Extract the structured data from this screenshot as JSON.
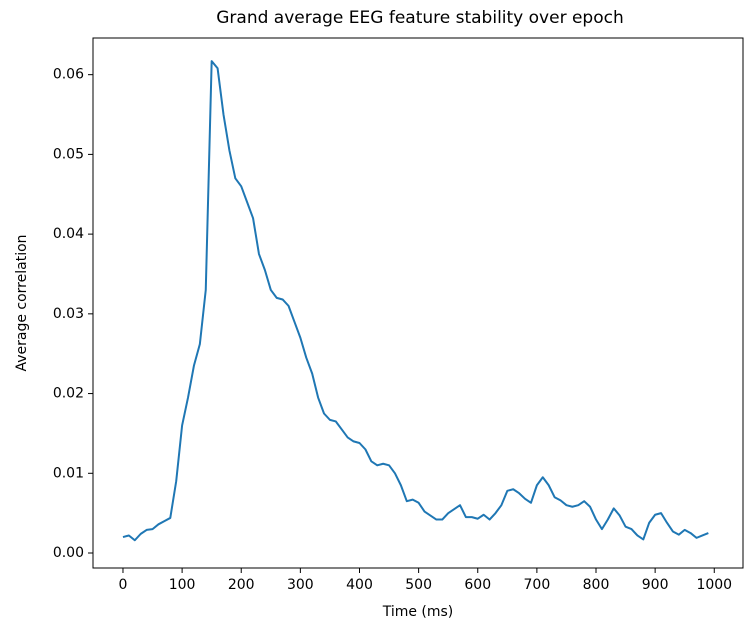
{
  "chart_data": {
    "type": "line",
    "title": "Grand average EEG feature stability over epoch",
    "xlabel": "Time (ms)",
    "ylabel": "Average correlation",
    "x": [
      0,
      10,
      20,
      30,
      40,
      50,
      60,
      70,
      80,
      90,
      100,
      110,
      120,
      130,
      140,
      150,
      160,
      170,
      180,
      190,
      200,
      210,
      220,
      230,
      240,
      250,
      260,
      270,
      280,
      290,
      300,
      310,
      320,
      330,
      340,
      350,
      360,
      370,
      380,
      390,
      400,
      410,
      420,
      430,
      440,
      450,
      460,
      470,
      480,
      490,
      500,
      510,
      520,
      530,
      540,
      550,
      560,
      570,
      580,
      590,
      600,
      610,
      620,
      630,
      640,
      650,
      660,
      670,
      680,
      690,
      700,
      710,
      720,
      730,
      740,
      750,
      760,
      770,
      780,
      790,
      800,
      810,
      820,
      830,
      840,
      850,
      860,
      870,
      880,
      890,
      900,
      910,
      920,
      930,
      940,
      950,
      960,
      970,
      980,
      990
    ],
    "series": [
      {
        "name": "Average correlation",
        "color": "#1f77b4",
        "values": [
          0.002,
          0.0022,
          0.0016,
          0.0024,
          0.0029,
          0.003,
          0.0036,
          0.004,
          0.0044,
          0.009,
          0.016,
          0.0195,
          0.0235,
          0.0262,
          0.033,
          0.0617,
          0.0608,
          0.055,
          0.0505,
          0.047,
          0.046,
          0.044,
          0.042,
          0.0375,
          0.0355,
          0.033,
          0.032,
          0.0318,
          0.031,
          0.029,
          0.027,
          0.0245,
          0.0225,
          0.0195,
          0.0175,
          0.0167,
          0.0165,
          0.0155,
          0.0145,
          0.014,
          0.0138,
          0.013,
          0.0115,
          0.011,
          0.0112,
          0.011,
          0.01,
          0.0085,
          0.0065,
          0.0067,
          0.0063,
          0.0052,
          0.0047,
          0.0042,
          0.0042,
          0.005,
          0.0055,
          0.006,
          0.0045,
          0.0045,
          0.0043,
          0.0048,
          0.0042,
          0.005,
          0.006,
          0.0078,
          0.008,
          0.0075,
          0.0068,
          0.0063,
          0.0085,
          0.0095,
          0.0085,
          0.007,
          0.0066,
          0.006,
          0.0058,
          0.006,
          0.0065,
          0.0058,
          0.0042,
          0.003,
          0.0042,
          0.0056,
          0.0047,
          0.0033,
          0.003,
          0.0022,
          0.0017,
          0.0038,
          0.0048,
          0.005,
          0.0038,
          0.0027,
          0.0023,
          0.0029,
          0.0025,
          0.0019,
          0.0022,
          0.0025
        ]
      }
    ],
    "xlim": [
      -50.7,
      1048.6
    ],
    "ylim": [
      -0.00188,
      0.0646
    ],
    "xticks": [
      0,
      100,
      200,
      300,
      400,
      500,
      600,
      700,
      800,
      900,
      1000
    ],
    "yticks": [
      {
        "value": 0,
        "label": "0.00"
      },
      {
        "value": 0.01,
        "label": "0.01"
      },
      {
        "value": 0.02,
        "label": "0.02"
      },
      {
        "value": 0.03,
        "label": "0.03"
      },
      {
        "value": 0.04,
        "label": "0.04"
      },
      {
        "value": 0.05,
        "label": "0.05"
      },
      {
        "value": 0.06,
        "label": "0.06"
      }
    ],
    "grid": false
  }
}
